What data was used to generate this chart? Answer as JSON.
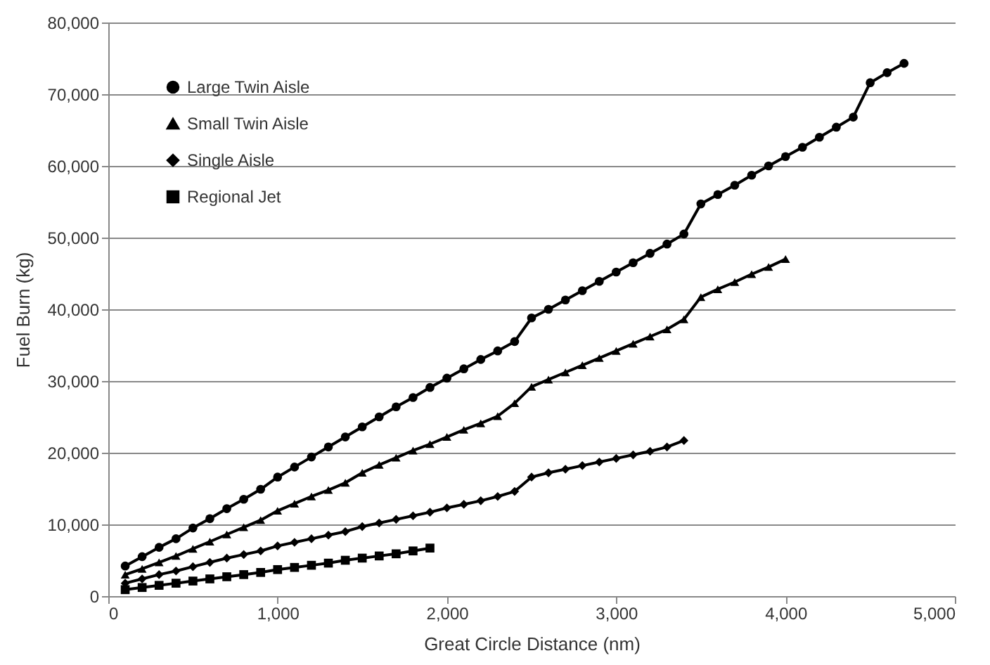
{
  "chart_data": {
    "type": "line",
    "xlabel": "Great Circle Distance (nm)",
    "ylabel": "Fuel Burn (kg)",
    "xlim": [
      0,
      5000
    ],
    "ylim": [
      0,
      80000
    ],
    "xticks": [
      0,
      {
        "value": 1000,
        "label": "1,000"
      },
      {
        "value": 2000,
        "label": "2,000"
      },
      {
        "value": 3000,
        "label": "3,000"
      },
      {
        "value": 4000,
        "label": "4,000"
      },
      {
        "value": 5000,
        "label": "5,000"
      }
    ],
    "yticks": [
      0,
      {
        "value": 10000,
        "label": "10,000"
      },
      {
        "value": 20000,
        "label": "20,000"
      },
      {
        "value": 30000,
        "label": "30,000"
      },
      {
        "value": 40000,
        "label": "40,000"
      },
      {
        "value": 50000,
        "label": "50,000"
      },
      {
        "value": 60000,
        "label": "60,000"
      },
      {
        "value": 70000,
        "label": "70,000"
      },
      {
        "value": 80000,
        "label": "80,000"
      }
    ],
    "grid": "y",
    "legend": "top left",
    "series": [
      {
        "name": "Large Twin Aisle",
        "color": "#000000",
        "marker": "circle",
        "x": [
          100,
          200,
          300,
          400,
          500,
          600,
          700,
          800,
          900,
          1000,
          1100,
          1200,
          1300,
          1400,
          1500,
          1600,
          1700,
          1800,
          1900,
          2000,
          2100,
          2200,
          2300,
          2400,
          2500,
          2600,
          2700,
          2800,
          2900,
          3000,
          3100,
          3200,
          3300,
          3400,
          3500,
          3600,
          3700,
          3800,
          3900,
          4000,
          4100,
          4200,
          4300,
          4400,
          4500,
          4600,
          4700
        ],
        "values": [
          4200,
          5500,
          6800,
          8000,
          9500,
          10800,
          12200,
          13500,
          14900,
          16600,
          18000,
          19400,
          20800,
          22200,
          23600,
          25000,
          26400,
          27700,
          29100,
          30400,
          31700,
          33000,
          34200,
          35500,
          38800,
          40000,
          41300,
          42600,
          43900,
          45200,
          46500,
          47800,
          49100,
          50500,
          54700,
          56000,
          57300,
          58700,
          60000,
          61300,
          62600,
          64000,
          65400,
          66800,
          71600,
          73000,
          74300
        ]
      },
      {
        "name": "Small Twin Aisle",
        "color": "#000000",
        "marker": "triangle",
        "x": [
          100,
          200,
          300,
          400,
          500,
          600,
          700,
          800,
          900,
          1000,
          1100,
          1200,
          1300,
          1400,
          1500,
          1600,
          1700,
          1800,
          1900,
          2000,
          2100,
          2200,
          2300,
          2400,
          2500,
          2600,
          2700,
          2800,
          2900,
          3000,
          3100,
          3200,
          3300,
          3400,
          3500,
          3600,
          3700,
          3800,
          3900,
          4000
        ],
        "values": [
          3000,
          3800,
          4700,
          5600,
          6600,
          7600,
          8600,
          9600,
          10600,
          11900,
          12900,
          13900,
          14800,
          15800,
          17200,
          18300,
          19300,
          20300,
          21200,
          22200,
          23200,
          24100,
          25100,
          26900,
          29200,
          30200,
          31200,
          32200,
          33200,
          34200,
          35200,
          36200,
          37200,
          38600,
          41700,
          42800,
          43800,
          44900,
          45900,
          47000
        ]
      },
      {
        "name": "Single Aisle",
        "color": "#000000",
        "marker": "diamond",
        "x": [
          100,
          200,
          300,
          400,
          500,
          600,
          700,
          800,
          900,
          1000,
          1100,
          1200,
          1300,
          1400,
          1500,
          1600,
          1700,
          1800,
          1900,
          2000,
          2100,
          2200,
          2300,
          2400,
          2500,
          2600,
          2700,
          2800,
          2900,
          3000,
          3100,
          3200,
          3300,
          3400
        ],
        "values": [
          1800,
          2400,
          3000,
          3500,
          4100,
          4700,
          5300,
          5800,
          6300,
          7000,
          7500,
          8000,
          8500,
          9000,
          9700,
          10200,
          10700,
          11200,
          11700,
          12300,
          12800,
          13300,
          13900,
          14600,
          16600,
          17200,
          17700,
          18200,
          18700,
          19200,
          19700,
          20200,
          20800,
          21700
        ]
      },
      {
        "name": "Regional Jet",
        "color": "#000000",
        "marker": "square",
        "x": [
          100,
          200,
          300,
          400,
          500,
          600,
          700,
          800,
          900,
          1000,
          1100,
          1200,
          1300,
          1400,
          1500,
          1600,
          1700,
          1800,
          1900
        ],
        "values": [
          900,
          1200,
          1500,
          1800,
          2100,
          2400,
          2700,
          3000,
          3300,
          3700,
          4000,
          4300,
          4600,
          5000,
          5300,
          5600,
          5900,
          6300,
          6700
        ]
      }
    ]
  }
}
